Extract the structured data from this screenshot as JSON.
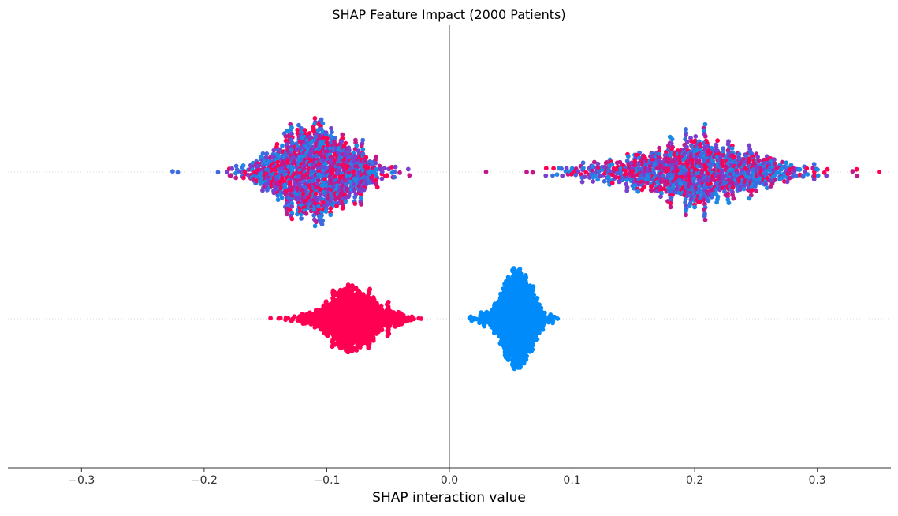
{
  "chart_data": {
    "type": "scatter",
    "subtype": "beeswarm",
    "title": "SHAP Feature Impact (2000 Patients)",
    "xlabel": "SHAP interaction value",
    "ylabel": "",
    "xlim": [
      -0.36,
      0.36
    ],
    "xticks": [
      -0.3,
      -0.2,
      -0.1,
      0.0,
      0.1,
      0.2,
      0.3
    ],
    "xtick_labels": [
      "−0.3",
      "−0.2",
      "−0.1",
      "0.0",
      "0.1",
      "0.2",
      "0.3"
    ],
    "zero_line": 0.0,
    "grid": false,
    "legend": "none",
    "rows": [
      {
        "index": 0,
        "label": "",
        "points": 2000,
        "clusters": [
          {
            "center": -0.11,
            "spread": 0.05,
            "min": -0.24,
            "max": 0.0,
            "count": 1000
          },
          {
            "center": 0.2,
            "spread": 0.08,
            "min": 0.0,
            "max": 0.36,
            "count": 1000
          }
        ],
        "color_scheme": "mixed",
        "colors": [
          "#1e88e5",
          "#7b3fd0",
          "#c2188a",
          "#ff0052",
          "#3d6ae0"
        ]
      },
      {
        "index": 1,
        "label": "",
        "points": 2000,
        "clusters": [
          {
            "center": -0.08,
            "spread": 0.035,
            "min": -0.19,
            "max": 0.01,
            "count": 1000
          },
          {
            "center": 0.055,
            "spread": 0.02,
            "min": -0.005,
            "max": 0.12,
            "count": 1000
          }
        ],
        "color_scheme": "split",
        "colors": [
          "#ff0052",
          "#008bfb"
        ]
      }
    ],
    "colors": {
      "low": "#008bfb",
      "high": "#ff0052",
      "axis": "#333333",
      "zero_line": "#999999",
      "row_guide": "#cccccc"
    }
  }
}
